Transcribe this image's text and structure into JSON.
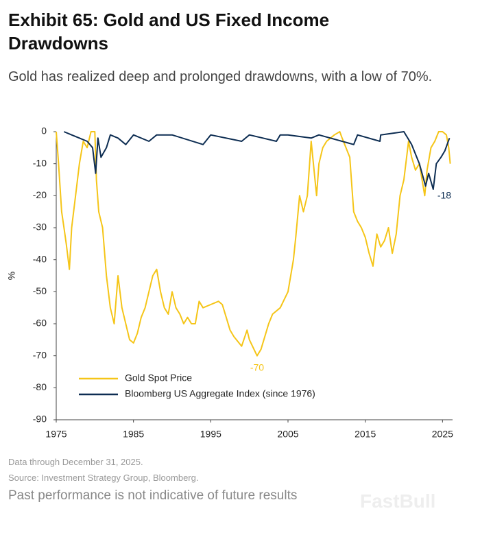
{
  "chart_data": {
    "type": "line",
    "title": "Exhibit 65: Gold and US Fixed Income Drawdowns",
    "subtitle": "Gold has realized deep and prolonged drawdowns, with a low of 70%.",
    "y_label": "%",
    "xlim": [
      1975,
      2026.3
    ],
    "xticks": [
      1975,
      1985,
      1995,
      2005,
      2015,
      2025
    ],
    "ylim": [
      -90,
      0
    ],
    "yticks": [
      0,
      -10,
      -20,
      -30,
      -40,
      -50,
      -60,
      -70,
      -80,
      -90
    ],
    "legend": "lower left",
    "series": [
      {
        "name": "Gold Spot Price",
        "color": "#f5c518",
        "x": [
          1975.0,
          1975.3,
          1975.7,
          1976.0,
          1976.3,
          1976.7,
          1977.0,
          1977.5,
          1978.0,
          1978.5,
          1979.0,
          1979.5,
          1980.0,
          1980.2,
          1980.5,
          1981.0,
          1981.5,
          1982.0,
          1982.5,
          1983.0,
          1983.5,
          1984.0,
          1984.5,
          1985.0,
          1985.5,
          1986.0,
          1986.5,
          1987.0,
          1987.5,
          1988.0,
          1988.5,
          1989.0,
          1989.5,
          1990.0,
          1990.5,
          1991.0,
          1991.5,
          1992.0,
          1992.5,
          1993.0,
          1993.5,
          1994.0,
          1995.0,
          1996.0,
          1996.5,
          1997.0,
          1997.5,
          1998.0,
          1999.0,
          1999.7,
          2000.0,
          2001.0,
          2001.5,
          2002.0,
          2002.5,
          2003.0,
          2004.0,
          2005.0,
          2005.7,
          2006.0,
          2006.5,
          2007.0,
          2007.5,
          2008.0,
          2008.7,
          2009.0,
          2009.5,
          2010.0,
          2010.5,
          2011.0,
          2011.7,
          2012.0,
          2012.5,
          2013.0,
          2013.5,
          2014.0,
          2014.5,
          2015.0,
          2015.5,
          2016.0,
          2016.5,
          2017.0,
          2017.5,
          2018.0,
          2018.5,
          2019.0,
          2019.5,
          2020.0,
          2020.6,
          2021.0,
          2021.5,
          2022.0,
          2022.7,
          2023.0,
          2023.5,
          2024.0,
          2024.5,
          2025.0,
          2025.5,
          2025.8,
          2026.0
        ],
        "values": [
          0,
          -10,
          -25,
          -30,
          -35,
          -43,
          -30,
          -20,
          -10,
          -3,
          -5,
          0,
          0,
          -15,
          -25,
          -30,
          -45,
          -55,
          -60,
          -45,
          -55,
          -60,
          -65,
          -66,
          -63,
          -58,
          -55,
          -50,
          -45,
          -43,
          -50,
          -55,
          -57,
          -50,
          -55,
          -57,
          -60,
          -58,
          -60,
          -60,
          -53,
          -55,
          -54,
          -53,
          -54,
          -58,
          -62,
          -64,
          -67,
          -62,
          -65,
          -70,
          -68,
          -64,
          -60,
          -57,
          -55,
          -50,
          -40,
          -33,
          -20,
          -25,
          -20,
          -3,
          -20,
          -10,
          -5,
          -3,
          -2,
          -1,
          0,
          -2,
          -5,
          -8,
          -25,
          -28,
          -30,
          -33,
          -38,
          -42,
          -32,
          -36,
          -34,
          -30,
          -38,
          -32,
          -20,
          -15,
          -3,
          -8,
          -12,
          -10,
          -20,
          -12,
          -5,
          -3,
          0,
          0,
          -1,
          -5,
          -10
        ]
      },
      {
        "name": "Bloomberg US Aggregate Index (since 1976)",
        "color": "#0d2d52",
        "x": [
          1976.0,
          1977.0,
          1978.0,
          1979.0,
          1979.7,
          1980.1,
          1980.4,
          1980.8,
          1981.5,
          1982.0,
          1983.0,
          1984.0,
          1985.0,
          1987.0,
          1988.0,
          1990.0,
          1994.0,
          1995.0,
          1999.0,
          2000.0,
          2003.5,
          2004.0,
          2005.0,
          2008.0,
          2009.0,
          2013.5,
          2014.0,
          2016.9,
          2017.0,
          2020.0,
          2021.0,
          2022.0,
          2022.8,
          2023.2,
          2023.8,
          2024.2,
          2024.8,
          2025.3,
          2025.9
        ],
        "values": [
          0,
          -1,
          -2,
          -3,
          -5,
          -13,
          -2,
          -8,
          -5,
          -1,
          -2,
          -4,
          -1,
          -3,
          -1,
          -1,
          -4,
          -1,
          -3,
          -1,
          -3,
          -1,
          -1,
          -2,
          -1,
          -4,
          -1,
          -3,
          -1,
          0,
          -4,
          -10,
          -17,
          -13,
          -18,
          -10,
          -8,
          -6,
          -2
        ]
      }
    ],
    "annotations": [
      {
        "text": "-70",
        "color": "#f5c518"
      },
      {
        "text": "-18",
        "color": "#0d2d52"
      }
    ],
    "notes": [
      "Data through December 31, 2025.",
      "Source: Investment Strategy Group, Bloomberg."
    ],
    "disclaimer": "Past performance is not indicative of future results",
    "watermark": "FastBull"
  }
}
